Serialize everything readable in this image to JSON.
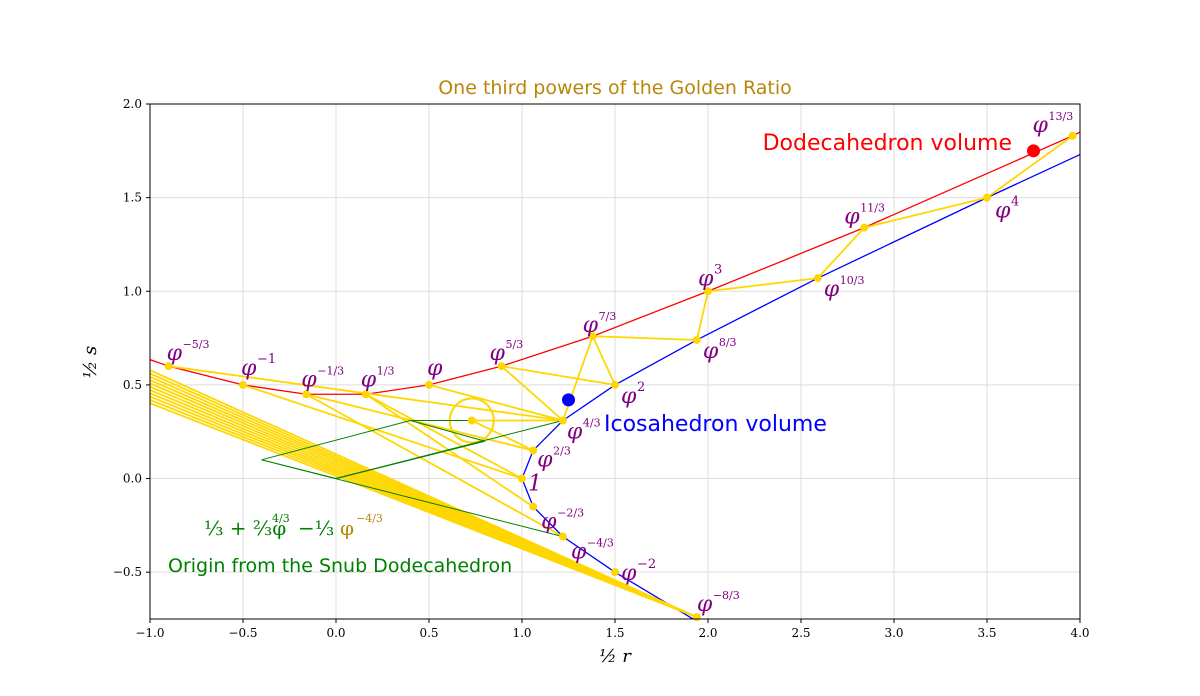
{
  "chart_data": {
    "type": "line",
    "title": "One third powers of the Golden Ratio",
    "title_color": "#b8860b",
    "xlabel": "½ r",
    "ylabel": "½ s",
    "xlim": [
      -1.0,
      4.0
    ],
    "ylim": [
      -0.75,
      2.0
    ],
    "grid": true,
    "x_ticks": [
      "−1.0",
      "−0.5",
      "0.0",
      "0.5",
      "1.0",
      "1.5",
      "2.0",
      "2.5",
      "3.0",
      "3.5",
      "4.0"
    ],
    "y_ticks": [
      "−0.5",
      "0.0",
      "0.5",
      "1.0",
      "1.5",
      "2.0"
    ],
    "colors": {
      "dodeca": "#ff0000",
      "icosa": "#0000ff",
      "gold": "#ffd700",
      "label": "#800080",
      "snub": "#008000",
      "formula_tail": "#b8860b"
    },
    "points": [
      {
        "base": "φ",
        "exp": "−5/3",
        "x": -0.9,
        "y": 0.6
      },
      {
        "base": "φ",
        "exp": "−1",
        "x": -0.5,
        "y": 0.5
      },
      {
        "base": "φ",
        "exp": "−1/3",
        "x": -0.16,
        "y": 0.45
      },
      {
        "base": "φ",
        "exp": "1/3",
        "x": 0.16,
        "y": 0.45
      },
      {
        "base": "φ",
        "exp": "",
        "x": 0.5,
        "y": 0.5
      },
      {
        "base": "φ",
        "exp": "5/3",
        "x": 0.89,
        "y": 0.6
      },
      {
        "base": "φ",
        "exp": "7/3",
        "x": 1.38,
        "y": 0.76
      },
      {
        "base": "φ",
        "exp": "3",
        "x": 2.0,
        "y": 1.0
      },
      {
        "base": "φ",
        "exp": "11/3",
        "x": 2.84,
        "y": 1.34
      },
      {
        "base": "φ",
        "exp": "13/3",
        "x": 3.96,
        "y": 1.83
      },
      {
        "base": "φ",
        "exp": "2",
        "x": 1.5,
        "y": 0.5
      },
      {
        "base": "φ",
        "exp": "8/3",
        "x": 1.94,
        "y": 0.74
      },
      {
        "base": "φ",
        "exp": "10/3",
        "x": 2.59,
        "y": 1.07
      },
      {
        "base": "φ",
        "exp": "4",
        "x": 3.5,
        "y": 1.5
      },
      {
        "base": "φ",
        "exp": "4/3",
        "x": 1.22,
        "y": 0.31
      },
      {
        "base": "φ",
        "exp": "2/3",
        "x": 1.06,
        "y": 0.15
      },
      {
        "base": "",
        "exp": "",
        "text": "1",
        "x": 1.0,
        "y": 0.0
      },
      {
        "base": "φ",
        "exp": "−2/3",
        "x": 1.06,
        "y": -0.15
      },
      {
        "base": "φ",
        "exp": "−4/3",
        "x": 1.22,
        "y": -0.31
      },
      {
        "base": "φ",
        "exp": "−2",
        "x": 1.5,
        "y": -0.5
      },
      {
        "base": "φ",
        "exp": "−8/3",
        "x": 1.94,
        "y": -0.74
      }
    ],
    "extra_gold_points": [
      {
        "x": 0.73,
        "y": 0.31
      }
    ],
    "annotations": {
      "dodeca_label": "Dodecahedron volume",
      "dodeca_point": {
        "x": 3.75,
        "y": 1.75
      },
      "icosa_label": "Icosahedron volume",
      "icosa_point": {
        "x": 1.25,
        "y": 0.42
      },
      "snub_label": "Origin from the Snub Dodecahedron",
      "formula": "⅓ + ⅔φ^(4/3) − ⅓ φ^(−4/3)"
    }
  }
}
